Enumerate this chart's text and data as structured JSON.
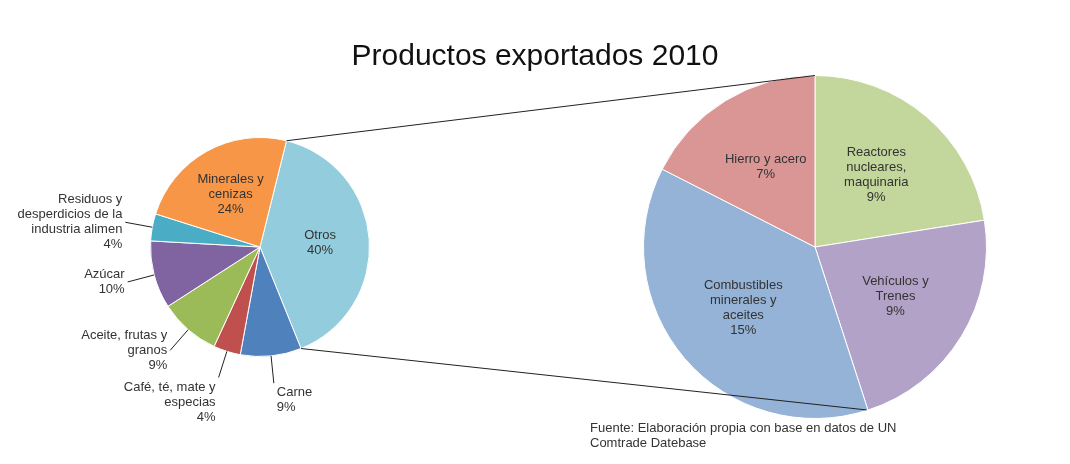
{
  "chart_data": [
    {
      "type": "pie",
      "title": "Productos exportados 2010",
      "categories": [
        "Otros",
        "Carne",
        "Café, té, mate y especias",
        "Aceite, frutas y granos",
        "Azúcar",
        "Residuos y desperdicios de la industria alimen",
        "Minerales y cenizas"
      ],
      "values": [
        40,
        9,
        4,
        9,
        10,
        4,
        24
      ],
      "value_labels": [
        "40%",
        "9%",
        "4%",
        "9%",
        "10%",
        "4%",
        "24%"
      ],
      "colors": [
        "#93cddd",
        "#4f81bd",
        "#c0504d",
        "#9bbb59",
        "#8064a2",
        "#4bacc6",
        "#f79646"
      ],
      "legend": false
    },
    {
      "type": "pie",
      "categories": [
        "Reactores nucleares, maquinaria",
        "Vehículos y Trenes",
        "Combustibles minerales y aceites",
        "Hierro y acero"
      ],
      "values": [
        9,
        9,
        15,
        7
      ],
      "value_labels": [
        "9%",
        "9%",
        "15%",
        "7%"
      ],
      "colors": [
        "#c3d69b",
        "#b3a2c7",
        "#95b3d7",
        "#d99694"
      ],
      "legend": false,
      "annotations": [
        "Fuente: Elaboración propia con base en datos de UN Comtrade Datebase"
      ]
    }
  ]
}
